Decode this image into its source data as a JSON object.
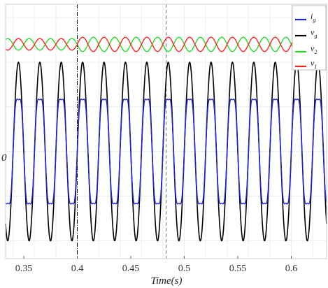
{
  "chart_data": {
    "type": "line",
    "xlabel": "Time(s)",
    "ylabel": "",
    "xlim": [
      0.333,
      0.633
    ],
    "ylim": [
      -1.2,
      1.65
    ],
    "xticks": [
      0.35,
      0.4,
      0.45,
      0.5,
      0.55,
      0.6
    ],
    "xtick_labels": [
      "0.35",
      "0.4",
      "0.45",
      "0.5",
      "0.55",
      "0.6"
    ],
    "ytick_labels": [
      "0"
    ],
    "grid": true,
    "legend_position": "top-right",
    "frequency_hz": 50,
    "vertical_markers": [
      {
        "x": 0.4,
        "style": "dash-dot",
        "color": "#000000"
      },
      {
        "x": 0.483,
        "style": "dashed",
        "color": "#777777"
      }
    ],
    "series": [
      {
        "name": "i",
        "subscript": "g",
        "color": "#1f1fe0",
        "kind": "sine-harmonic",
        "amplitude": 0.58,
        "offset": 0,
        "phase_deg": 0
      },
      {
        "name": "v",
        "subscript": "g",
        "color": "#000000",
        "kind": "sine",
        "amplitude": 1.0,
        "offset": 0,
        "phase_deg": 0
      },
      {
        "name": "v",
        "subscript": "2",
        "color": "#22dd22",
        "kind": "sine",
        "amplitude": 0.065,
        "offset": 1.2,
        "phase_deg": 180,
        "amplitude_after_step": 0.08,
        "step_x": 0.4
      },
      {
        "name": "v",
        "subscript": "1",
        "color": "#ff2020",
        "kind": "sine",
        "amplitude": 0.065,
        "offset": 1.2,
        "phase_deg": 0,
        "amplitude_after_step": 0.08,
        "step_x": 0.4
      }
    ]
  }
}
